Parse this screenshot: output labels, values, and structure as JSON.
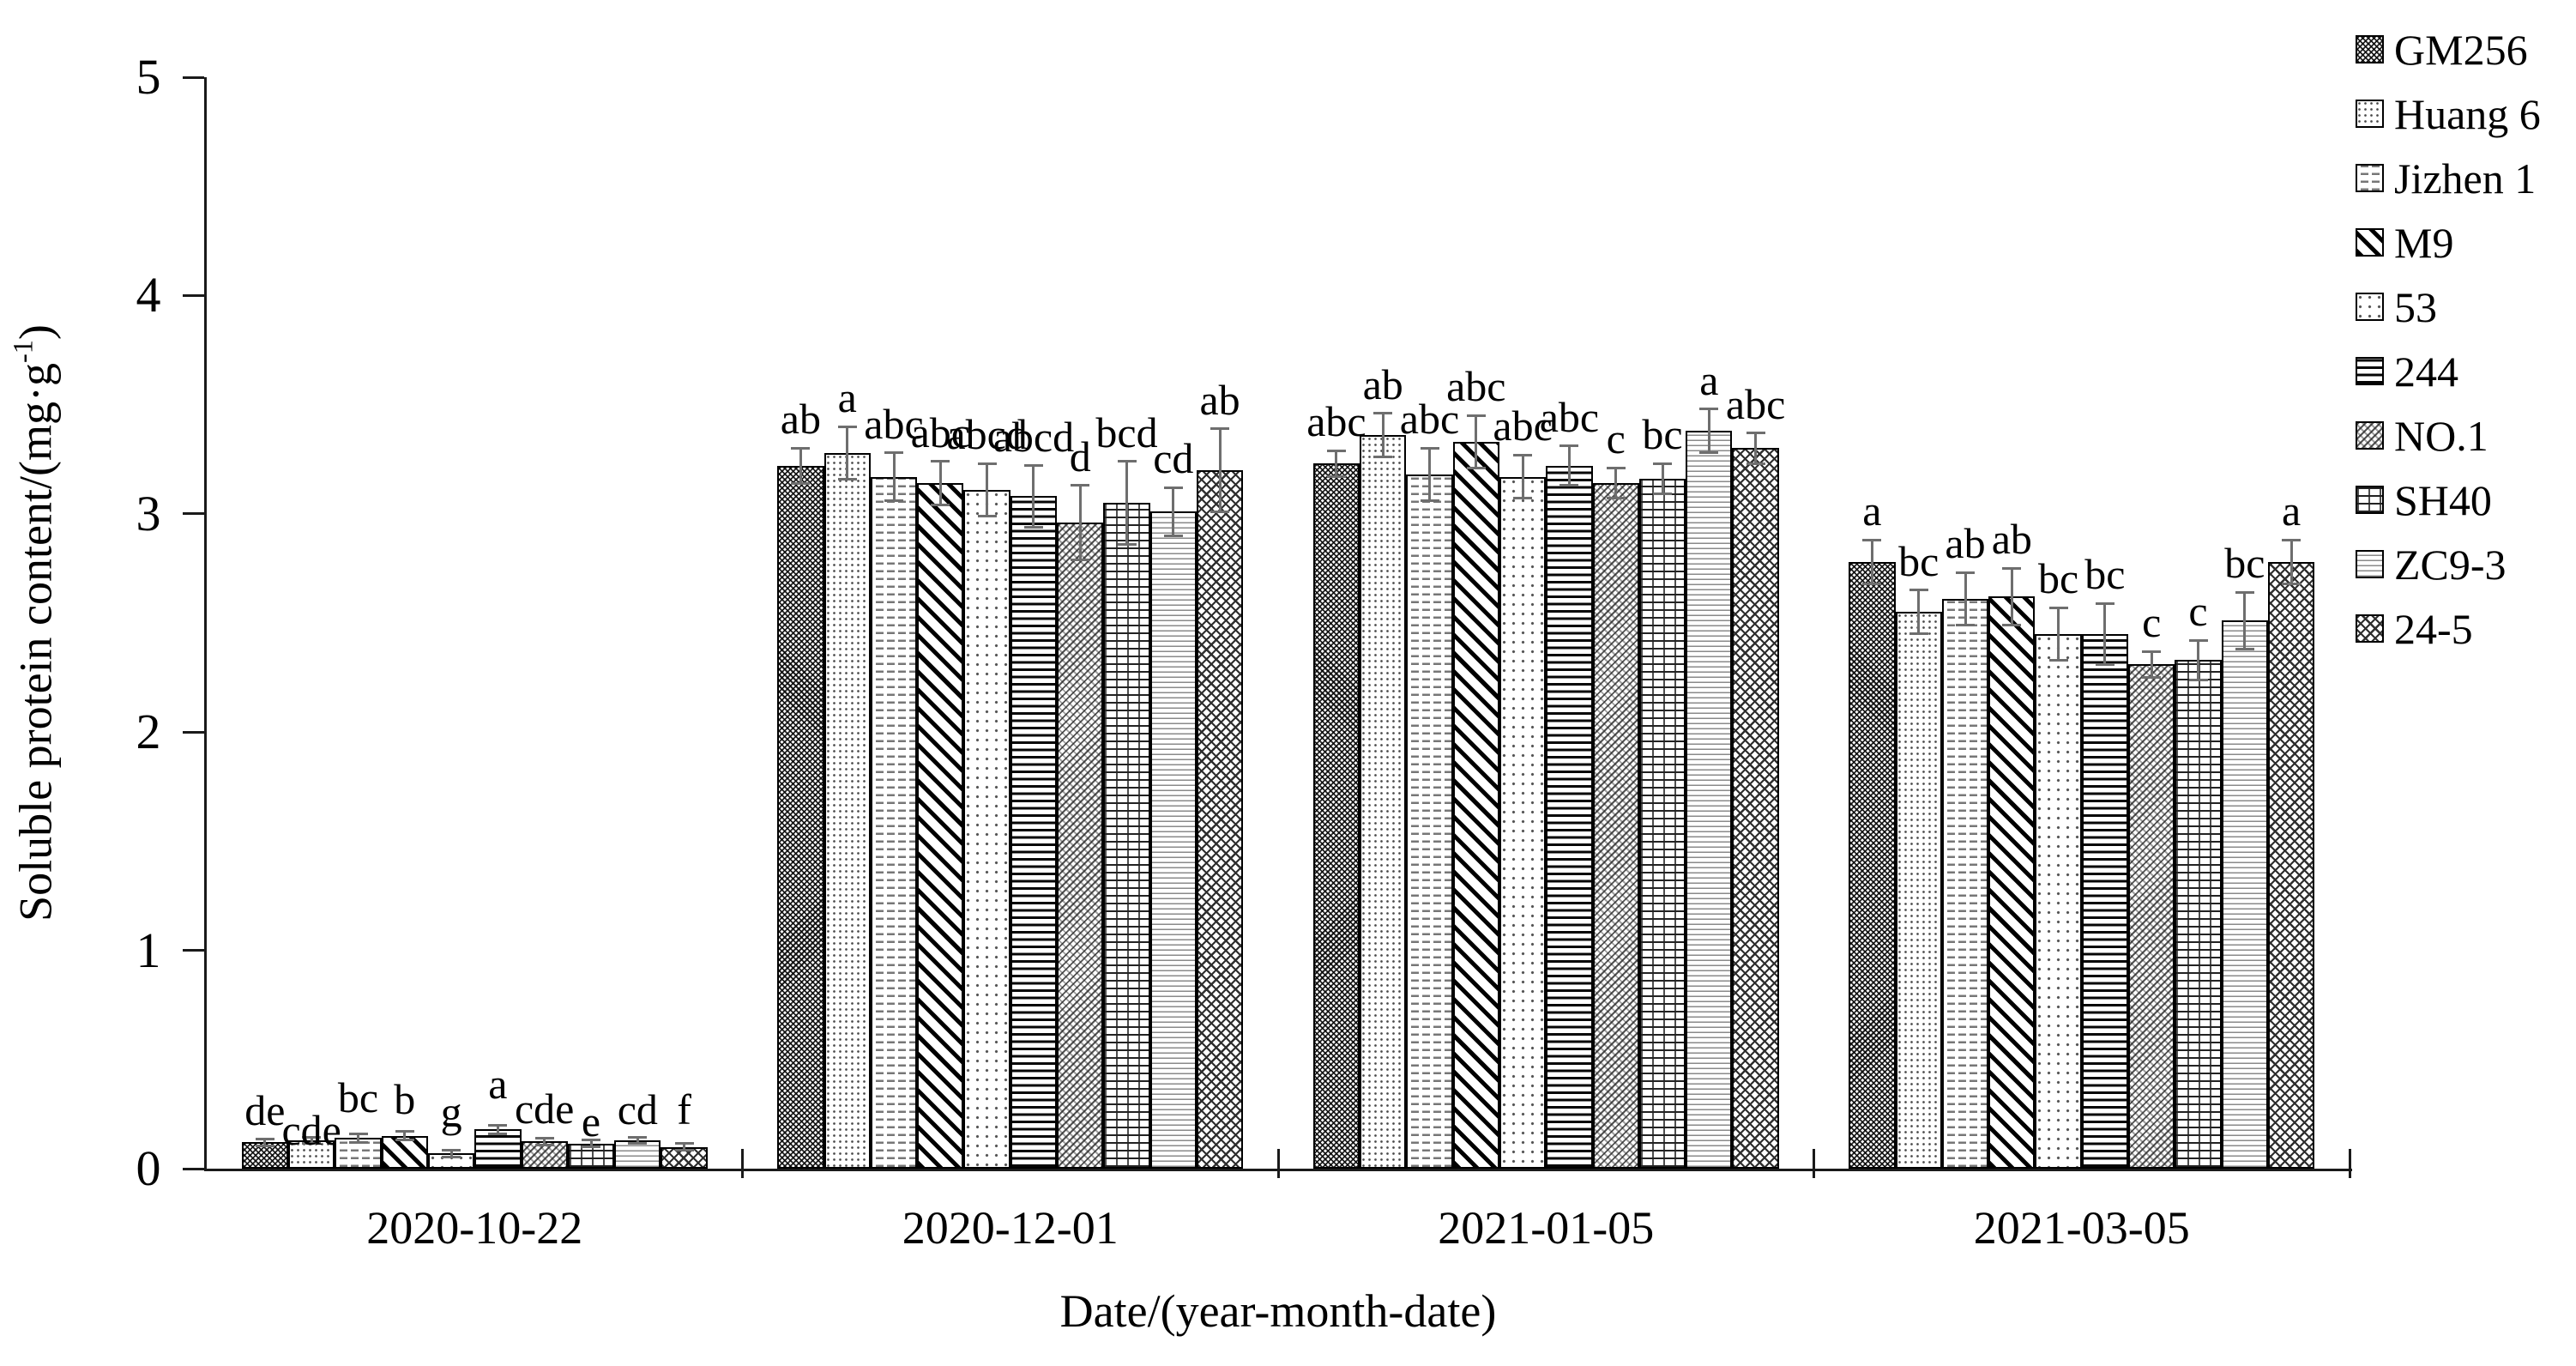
{
  "figure": {
    "background": "#ffffff",
    "ink_color": "#000000",
    "error_bar_color": "#6e6e6e",
    "y_axis": {
      "title_prefix": "Soluble protein content/(mg·g",
      "title_sup": "-1",
      "title_suffix": ")",
      "tick_labels": [
        "0",
        "1",
        "2",
        "3",
        "4",
        "5"
      ],
      "min": 0,
      "max": 5
    },
    "x_axis": {
      "title": "Date/(year-month-date)"
    }
  },
  "chart_data": {
    "type": "bar",
    "title": "",
    "xlabel": "Date/(year-month-date)",
    "ylabel": "Soluble protein content/(mg·g-1)",
    "ylim": [
      0,
      5
    ],
    "grid": false,
    "legend_position": "right",
    "error_bars": true,
    "categories": [
      "2020-10-22",
      "2020-12-01",
      "2021-01-05",
      "2021-03-05"
    ],
    "series": [
      {
        "name": "GM256",
        "pattern": "dense-diagonal-crosshatch",
        "values": [
          0.12,
          3.22,
          3.23,
          2.78
        ],
        "errors": [
          0.015,
          0.08,
          0.06,
          0.1
        ],
        "letters": [
          "de",
          "ab",
          "abc",
          "a"
        ]
      },
      {
        "name": "Huang 6",
        "pattern": "fine-dots",
        "values": [
          0.13,
          3.28,
          3.36,
          2.55
        ],
        "errors": [
          0.015,
          0.12,
          0.1,
          0.1
        ],
        "letters": [
          "cde",
          "a",
          "ab",
          "bc"
        ]
      },
      {
        "name": "Jizhen 1",
        "pattern": "horizontal-dashes",
        "values": [
          0.14,
          3.17,
          3.18,
          2.61
        ],
        "errors": [
          0.02,
          0.11,
          0.12,
          0.12
        ],
        "letters": [
          "bc",
          "abc",
          "abc",
          "ab"
        ]
      },
      {
        "name": "M9",
        "pattern": "thick-diagonal-stripes",
        "values": [
          0.15,
          3.14,
          3.33,
          2.62
        ],
        "errors": [
          0.02,
          0.1,
          0.12,
          0.13
        ],
        "letters": [
          "b",
          "abc",
          "abc",
          "ab"
        ]
      },
      {
        "name": "53",
        "pattern": "sparse-dots",
        "values": [
          0.07,
          3.11,
          3.17,
          2.45
        ],
        "errors": [
          0.015,
          0.12,
          0.1,
          0.12
        ],
        "letters": [
          "g",
          "abcd",
          "abc",
          "bc"
        ]
      },
      {
        "name": "244",
        "pattern": "horizontal-lines",
        "values": [
          0.18,
          3.08,
          3.22,
          2.45
        ],
        "errors": [
          0.02,
          0.14,
          0.09,
          0.14
        ],
        "letters": [
          "a",
          "abcd",
          "abc",
          "bc"
        ]
      },
      {
        "name": "NO.1",
        "pattern": "diagonal-weave",
        "values": [
          0.125,
          2.96,
          3.14,
          2.31
        ],
        "errors": [
          0.015,
          0.17,
          0.07,
          0.06
        ],
        "letters": [
          "cde",
          "d",
          "c",
          "c"
        ]
      },
      {
        "name": "SH40",
        "pattern": "brick",
        "values": [
          0.115,
          3.05,
          3.16,
          2.33
        ],
        "errors": [
          0.015,
          0.19,
          0.07,
          0.09
        ],
        "letters": [
          "e",
          "bcd",
          "bc",
          "c"
        ]
      },
      {
        "name": "ZC9-3",
        "pattern": "horizontal-waves",
        "values": [
          0.13,
          3.01,
          3.38,
          2.51
        ],
        "errors": [
          0.015,
          0.11,
          0.1,
          0.13
        ],
        "letters": [
          "cd",
          "cd",
          "a",
          "bc"
        ]
      },
      {
        "name": "24-5",
        "pattern": "diamond-lattice",
        "values": [
          0.1,
          3.2,
          3.3,
          2.78
        ],
        "errors": [
          0.015,
          0.19,
          0.07,
          0.1
        ],
        "letters": [
          "f",
          "ab",
          "abc",
          "a"
        ]
      }
    ]
  }
}
